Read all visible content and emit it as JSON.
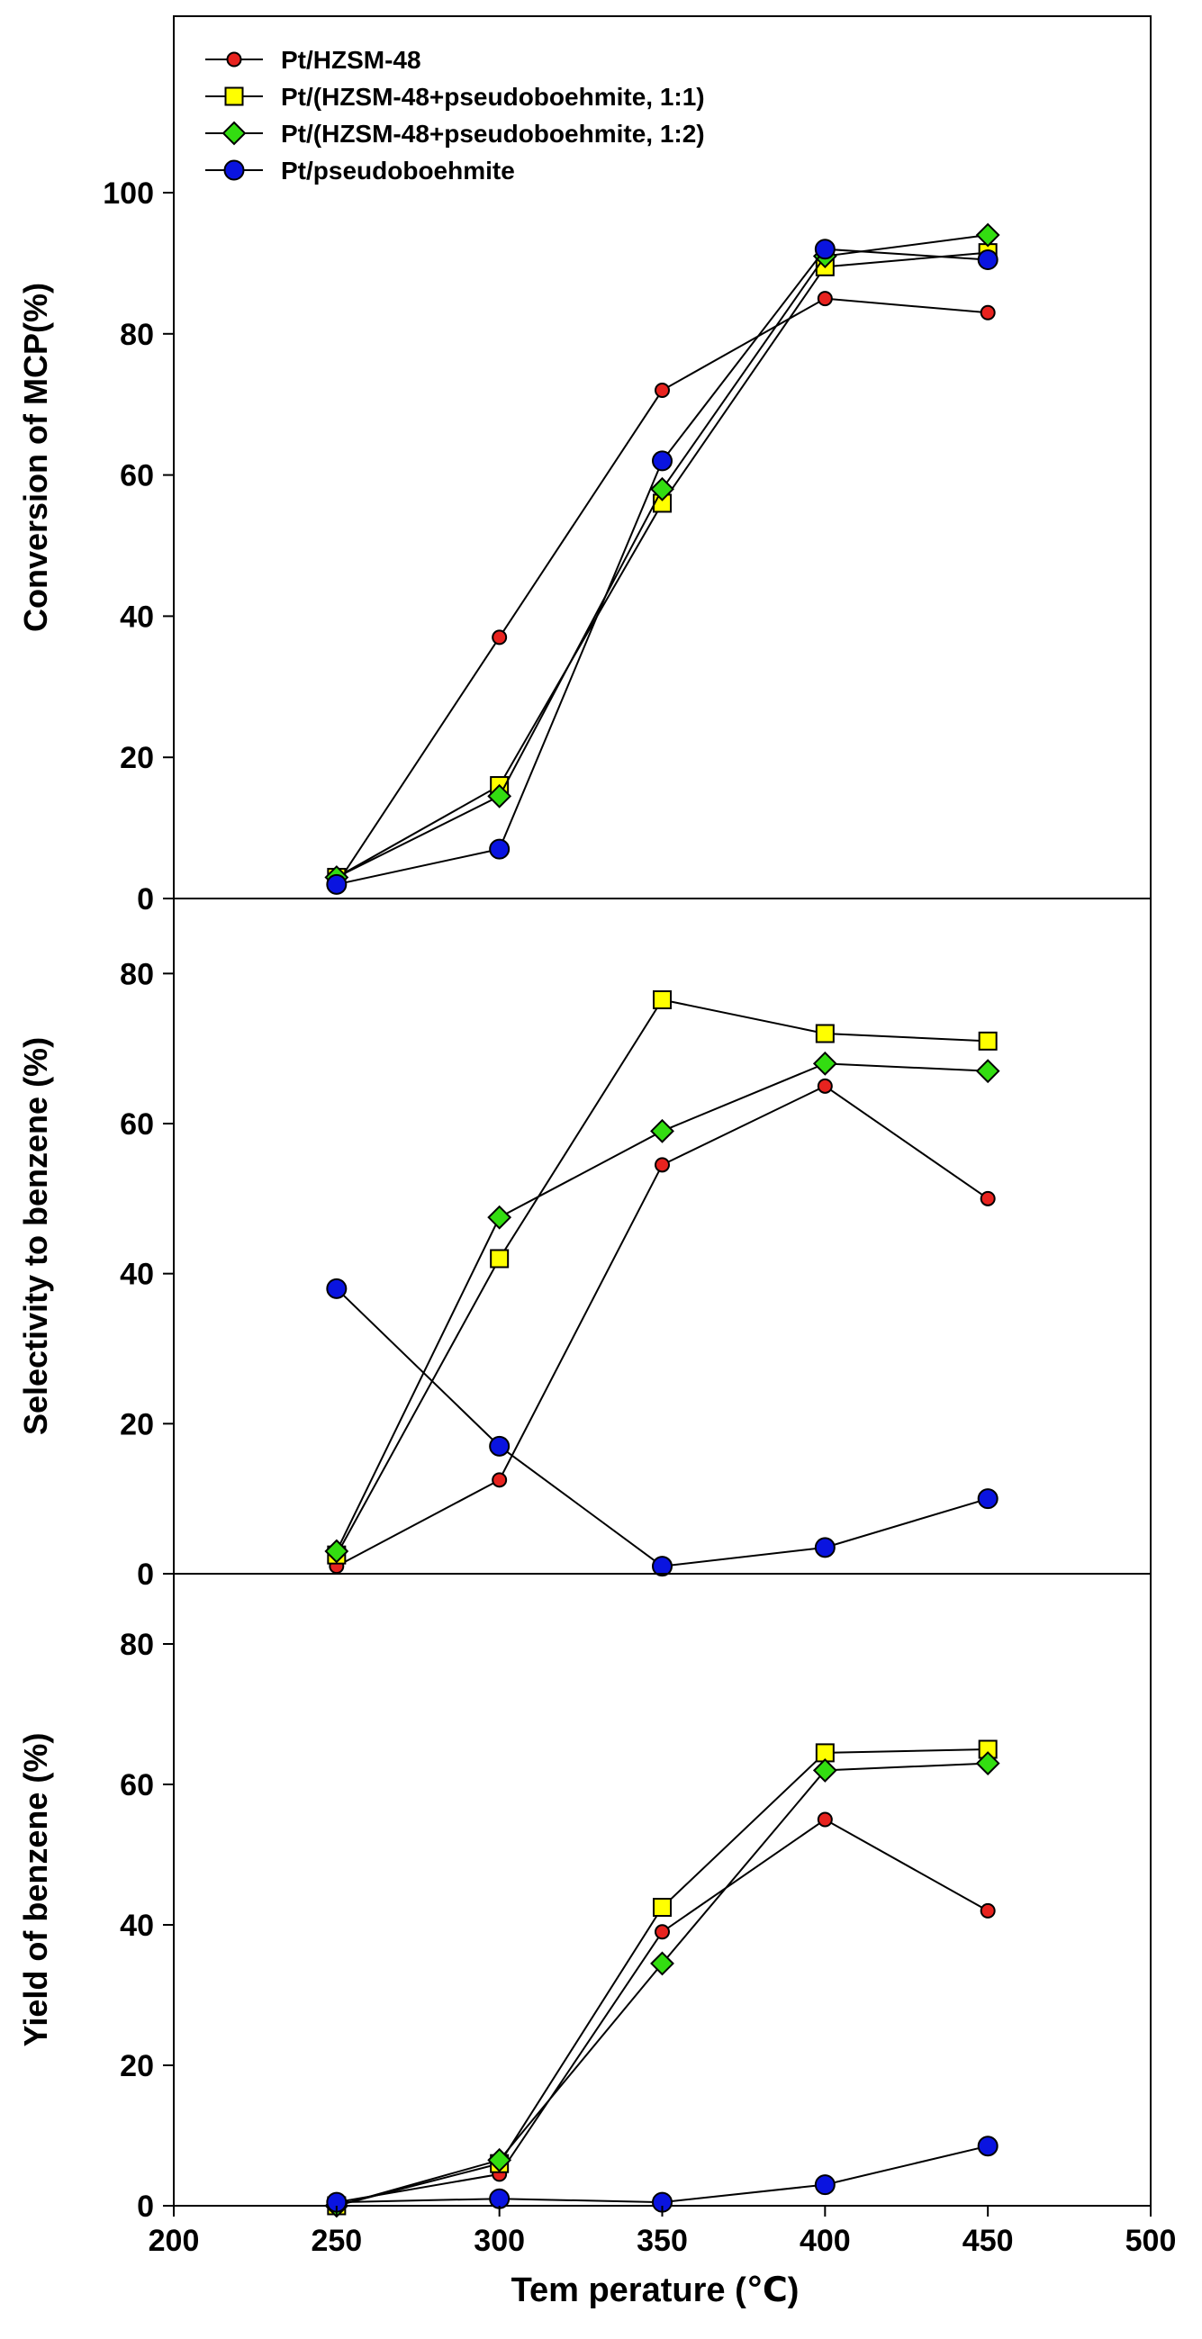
{
  "chart_data": [
    {
      "type": "line",
      "id": "conversion",
      "ylabel": "Conversion of  MCP(%)",
      "ylim": [
        0,
        125
      ],
      "yticks": [
        0,
        20,
        40,
        60,
        80,
        100
      ],
      "x": [
        250,
        300,
        350,
        400,
        450
      ],
      "series": [
        {
          "name": "Pt/HZSM-48",
          "values": [
            2,
            37,
            72,
            85,
            83
          ]
        },
        {
          "name": "Pt/(HZSM-48+pseudoboehmite, 1:1)",
          "values": [
            3,
            16,
            56,
            89.5,
            91.5
          ]
        },
        {
          "name": "Pt/(HZSM-48+pseudoboehmite, 1:2)",
          "values": [
            3,
            14.5,
            58,
            91,
            94
          ]
        },
        {
          "name": "Pt/pseudoboehmite",
          "values": [
            2,
            7,
            62,
            92,
            90.5
          ]
        }
      ]
    },
    {
      "type": "line",
      "id": "selectivity",
      "ylabel": "Selectivity to benzene (%)",
      "ylim": [
        0,
        90
      ],
      "yticks": [
        0,
        20,
        40,
        60,
        80
      ],
      "x": [
        250,
        300,
        350,
        400,
        450
      ],
      "series": [
        {
          "name": "Pt/HZSM-48",
          "values": [
            1,
            12.5,
            54.5,
            65,
            50
          ]
        },
        {
          "name": "Pt/(HZSM-48+pseudoboehmite, 1:1)",
          "values": [
            2.5,
            42,
            76.5,
            72,
            71
          ]
        },
        {
          "name": "Pt/(HZSM-48+pseudoboehmite, 1:2)",
          "values": [
            3,
            47.5,
            59,
            68,
            67
          ]
        },
        {
          "name": "Pt/pseudoboehmite",
          "values": [
            38,
            17,
            1,
            3.5,
            10
          ]
        }
      ]
    },
    {
      "type": "line",
      "id": "yield",
      "ylabel": "Yield of benzene (%)",
      "xlabel": "Tem perature (℃)",
      "ylim": [
        0,
        90
      ],
      "yticks": [
        0,
        20,
        40,
        60,
        80
      ],
      "xlim": [
        200,
        500
      ],
      "xticks": [
        200,
        250,
        300,
        350,
        400,
        450,
        500
      ],
      "x": [
        250,
        300,
        350,
        400,
        450
      ],
      "series": [
        {
          "name": "Pt/HZSM-48",
          "values": [
            0.5,
            4.5,
            39,
            55,
            42
          ]
        },
        {
          "name": "Pt/(HZSM-48+pseudoboehmite, 1:1)",
          "values": [
            0,
            6,
            42.5,
            64.5,
            65
          ]
        },
        {
          "name": "Pt/(HZSM-48+pseudoboehmite, 1:2)",
          "values": [
            0,
            6.5,
            34.5,
            62,
            63
          ]
        },
        {
          "name": "Pt/pseudoboehmite",
          "values": [
            0.5,
            1,
            0.5,
            3,
            8.5
          ]
        }
      ]
    }
  ],
  "legend": {
    "location": "top-left",
    "entries": [
      {
        "label": "Pt/HZSM-48",
        "marker": "circle-small",
        "color": "#e8231f"
      },
      {
        "label": "Pt/(HZSM-48+pseudoboehmite, 1:1)",
        "marker": "square",
        "color": "#ffff00"
      },
      {
        "label": "Pt/(HZSM-48+pseudoboehmite, 1:2)",
        "marker": "diamond",
        "color": "#33dd11"
      },
      {
        "label": "Pt/pseudoboehmite",
        "marker": "circle",
        "color": "#0a14e0"
      }
    ]
  }
}
